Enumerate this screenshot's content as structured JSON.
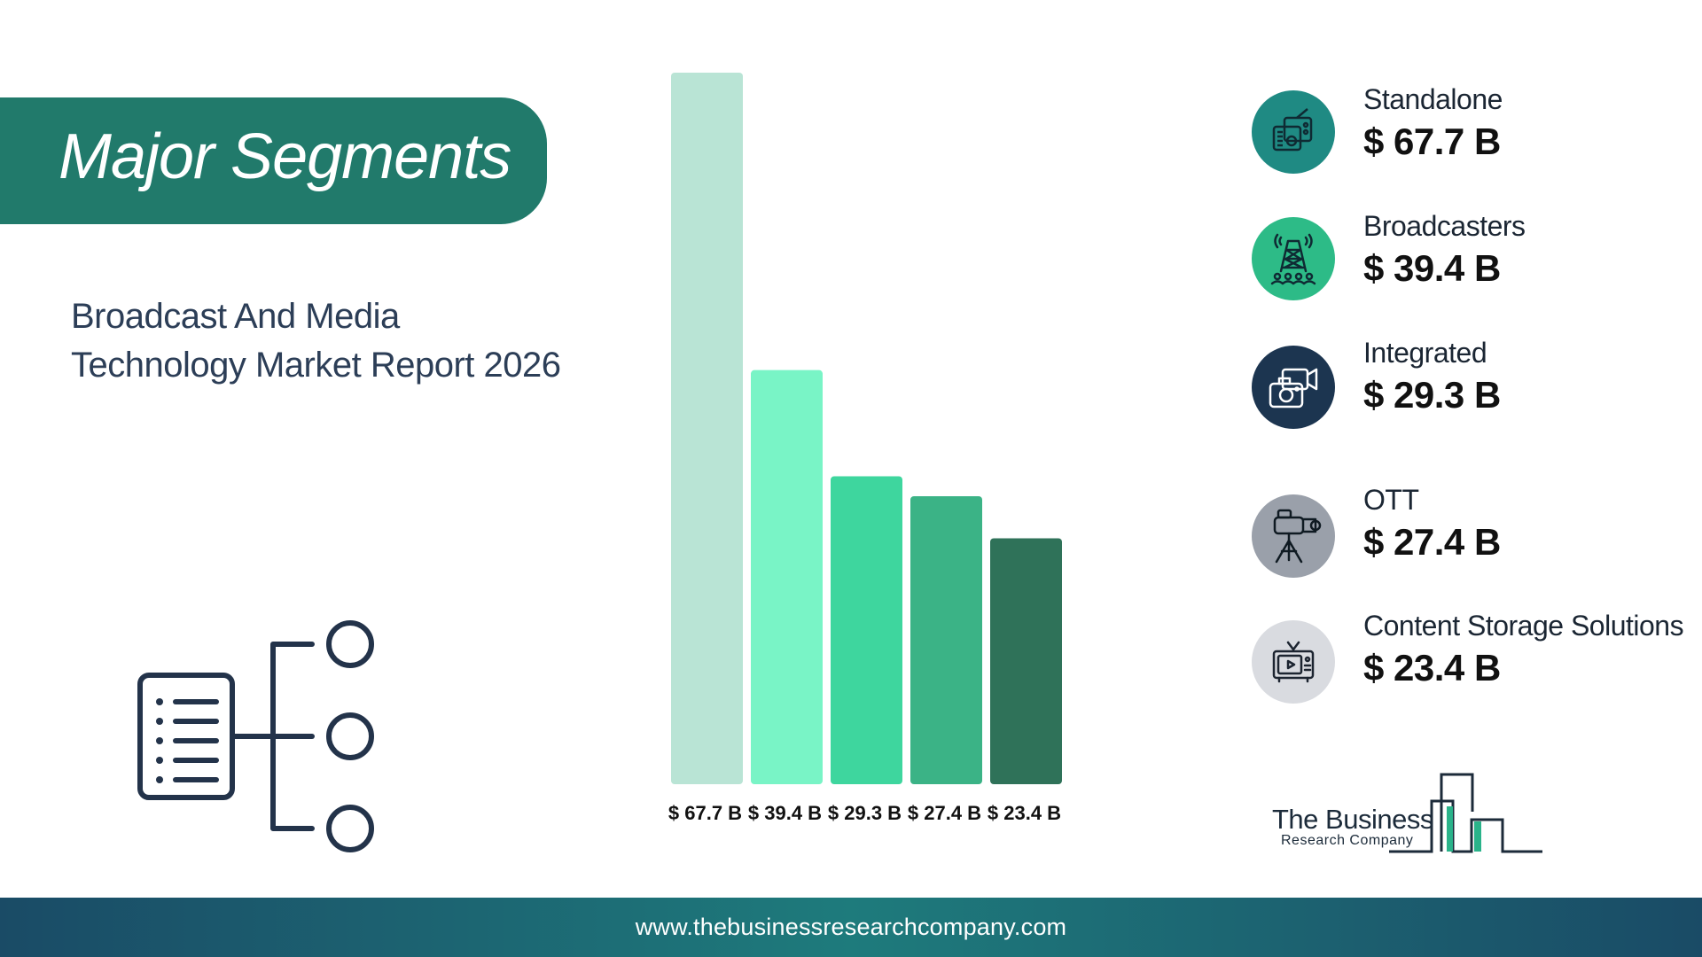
{
  "header": {
    "banner_title": "Major Segments",
    "report_title_line1": "Broadcast And Media",
    "report_title_line2": "Technology Market Report 2026"
  },
  "chart_data": {
    "type": "bar",
    "title": "",
    "xlabel": "",
    "ylabel": "",
    "categories": [
      "Standalone",
      "Broadcasters",
      "Integrated",
      "OTT",
      "Content Storage Solutions"
    ],
    "values": [
      67.7,
      39.4,
      29.3,
      27.4,
      23.4
    ],
    "data_labels": [
      "$ 67.7 B",
      "$ 39.4 B",
      "$ 29.3 B",
      "$ 27.4 B",
      "$ 23.4 B"
    ],
    "bar_colors": [
      "#b9e4d5",
      "#79f4c6",
      "#3ed69e",
      "#3bb386",
      "#2f7259"
    ],
    "ylim": [
      0,
      67.7
    ],
    "grid": false,
    "legend": "right"
  },
  "legend": {
    "items": [
      {
        "name": "Standalone",
        "value": "$ 67.7 B",
        "icon": "radio-icon",
        "icon_bg": "#1f8a83"
      },
      {
        "name": "Broadcasters",
        "value": "$ 39.4 B",
        "icon": "broadcast-tower-icon",
        "icon_bg": "#2dbb87"
      },
      {
        "name": "Integrated",
        "value": "$ 29.3 B",
        "icon": "camera-icon",
        "icon_bg": "#1c3550"
      },
      {
        "name": "OTT",
        "value": "$ 27.4 B",
        "icon": "video-camera-tripod-icon",
        "icon_bg": "#9aa0aa"
      },
      {
        "name": "Content Storage Solutions",
        "value": "$ 23.4 B",
        "icon": "television-icon",
        "icon_bg": "#d9dbe0"
      }
    ]
  },
  "logo": {
    "name": "The Business",
    "subtitle": "Research Company"
  },
  "footer": {
    "url": "www.thebusinessresearchcompany.com"
  }
}
